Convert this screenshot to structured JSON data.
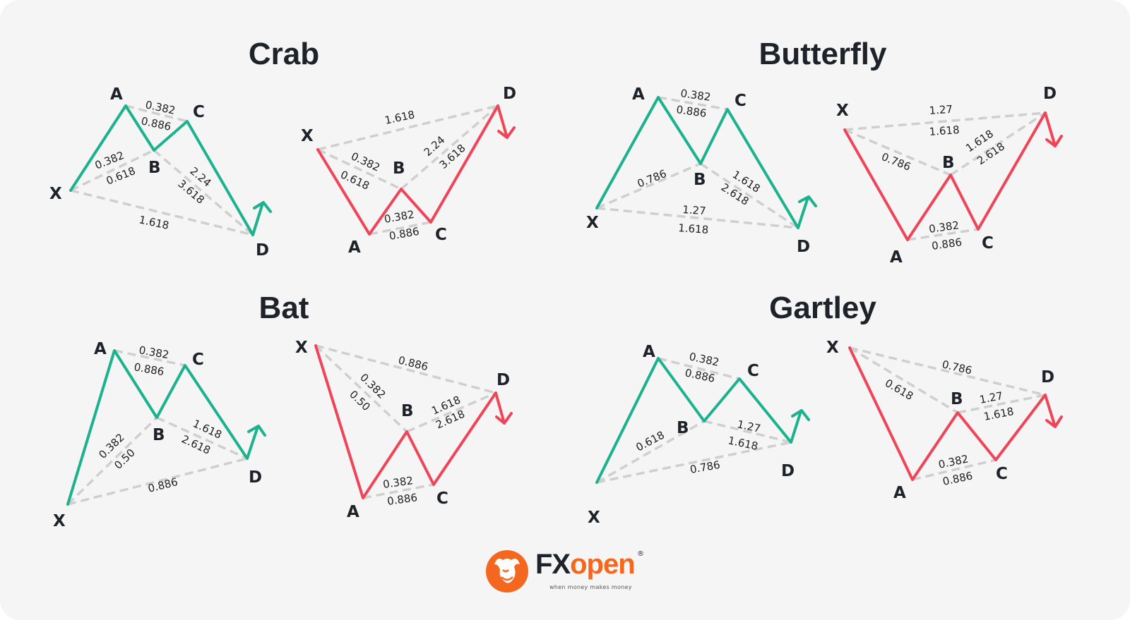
{
  "titles": {
    "crab": "Crab",
    "butterfly": "Butterfly",
    "bat": "Bat",
    "gartley": "Gartley"
  },
  "points": {
    "x": "X",
    "a": "A",
    "b": "B",
    "c": "C",
    "d": "D"
  },
  "crab": {
    "bull": {
      "xa_b_1": "0.382",
      "xa_b_2": "0.618",
      "ab_c_1": "0.382",
      "ab_c_2": "0.886",
      "bc_d_1": "2.24",
      "bc_d_2": "3.618",
      "xa_d": "1.618"
    },
    "bear": {
      "xa_d": "1.618",
      "xa_b_1": "0.382",
      "xa_b_2": "0.618",
      "bc_d_1": "2.24",
      "bc_d_2": "3.618",
      "ab_c_1": "0.382",
      "ab_c_2": "0.886"
    }
  },
  "butterfly": {
    "bull": {
      "ab_c_1": "0.382",
      "ab_c_2": "0.886",
      "xa_b": "0.786",
      "bc_d_1": "1.618",
      "bc_d_2": "2.618",
      "xa_d_1": "1.27",
      "xa_d_2": "1.618"
    },
    "bear": {
      "xa_d_1": "1.27",
      "xa_d_2": "1.618",
      "xa_b": "0.786",
      "bc_d_1": "1.618",
      "bc_d_2": "2.618",
      "ab_c_1": "0.382",
      "ab_c_2": "0.886"
    }
  },
  "bat": {
    "bull": {
      "ab_c_1": "0.382",
      "ab_c_2": "0.886",
      "xa_b_1": "0.382",
      "xa_b_2": "0.50",
      "bc_d_1": "1.618",
      "bc_d_2": "2.618",
      "xa_d": "0.886"
    },
    "bear": {
      "xa_d": "0.886",
      "xa_b_1": "0.382",
      "xa_b_2": "0.50",
      "bc_d_1": "1.618",
      "bc_d_2": "2.618",
      "ab_c_1": "0.382",
      "ab_c_2": "0.886"
    }
  },
  "gartley": {
    "bull": {
      "ab_c_1": "0.382",
      "ab_c_2": "0.886",
      "xa_b": "0.618",
      "bc_d_1": "1.27",
      "bc_d_2": "1.618",
      "xa_d": "0.786"
    },
    "bear": {
      "xa_d": "0.786",
      "xa_b": "0.618",
      "bc_d_1": "1.27",
      "bc_d_2": "1.618",
      "ab_c_1": "0.382",
      "ab_c_2": "0.886"
    }
  },
  "colors": {
    "bullish": "#1cb28e",
    "bearish": "#ef4559",
    "ratio_line": "#cfcfcf",
    "brand": "#f4671f"
  },
  "logo": {
    "word_1": "FX",
    "word_2": "open",
    "reg": "®",
    "tagline": "when money makes money",
    "icon": "bull-head-icon"
  }
}
